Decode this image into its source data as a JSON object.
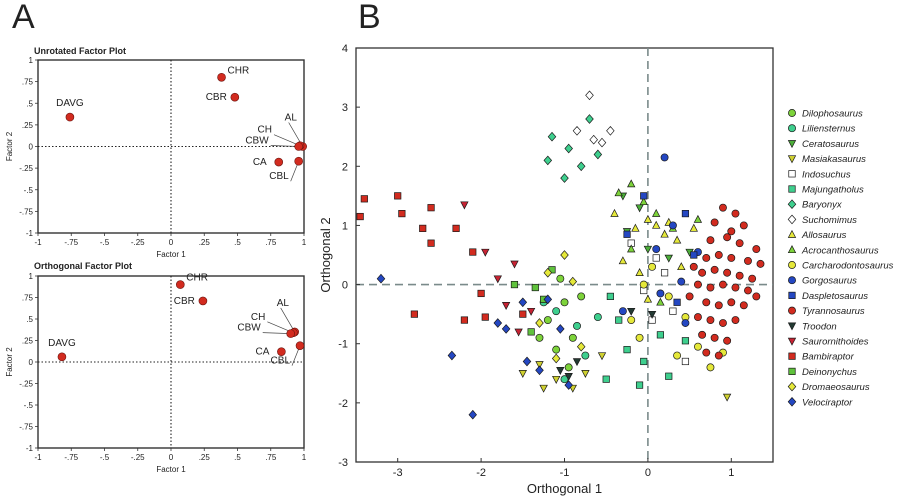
{
  "panel_labels": {
    "a": "A",
    "b": "B"
  },
  "colors": {
    "point": "#d22b1f",
    "frame": "#333333",
    "guide": "#222222",
    "dash_b": "#7a8a8a"
  },
  "chart_data": [
    {
      "type": "scatter",
      "title": "Unrotated Factor Plot",
      "xlabel": "Factor 1",
      "ylabel": "Factor 2",
      "xlim": [
        -1,
        1
      ],
      "ylim": [
        -1,
        1
      ],
      "xticks": [
        "-1",
        "-.75",
        "-.5",
        "-.25",
        "0",
        ".25",
        ".5",
        ".75",
        "1"
      ],
      "yticks": [
        "-1",
        "-.75",
        "-.5",
        "-.25",
        "0",
        ".25",
        ".5",
        ".75",
        "1"
      ],
      "points": [
        {
          "label": "DAVG",
          "x": -0.76,
          "y": 0.34
        },
        {
          "label": "CHR",
          "x": 0.38,
          "y": 0.8
        },
        {
          "label": "CBR",
          "x": 0.48,
          "y": 0.57
        },
        {
          "label": "AL",
          "x": 0.99,
          "y": 0.0
        },
        {
          "label": "CH",
          "x": 0.97,
          "y": 0.01
        },
        {
          "label": "CBW",
          "x": 0.96,
          "y": 0.0
        },
        {
          "label": "CA",
          "x": 0.81,
          "y": -0.18
        },
        {
          "label": "CBL",
          "x": 0.96,
          "y": -0.17
        }
      ]
    },
    {
      "type": "scatter",
      "title": "Orthogonal Factor Plot",
      "xlabel": "Factor 1",
      "ylabel": "Factor 2",
      "xlim": [
        -1,
        1
      ],
      "ylim": [
        -1,
        1
      ],
      "xticks": [
        "-1",
        "-.75",
        "-.5",
        "-.25",
        "0",
        ".25",
        ".5",
        ".75",
        "1"
      ],
      "yticks": [
        "-1",
        "-.75",
        "-.5",
        "-.25",
        "0",
        ".25",
        ".5",
        ".75",
        "1"
      ],
      "points": [
        {
          "label": "DAVG",
          "x": -0.82,
          "y": 0.06
        },
        {
          "label": "CHR",
          "x": 0.07,
          "y": 0.9
        },
        {
          "label": "CBR",
          "x": 0.24,
          "y": 0.71
        },
        {
          "label": "AL",
          "x": 0.93,
          "y": 0.35
        },
        {
          "label": "CH",
          "x": 0.92,
          "y": 0.34
        },
        {
          "label": "CBW",
          "x": 0.9,
          "y": 0.33
        },
        {
          "label": "CA",
          "x": 0.83,
          "y": 0.12
        },
        {
          "label": "CBL",
          "x": 0.97,
          "y": 0.19
        }
      ]
    },
    {
      "type": "scatter",
      "xlabel": "Orthogonal 1",
      "ylabel": "Orthogonal 2",
      "xlim": [
        -3.5,
        1.5
      ],
      "ylim": [
        -3,
        4
      ],
      "xticks": [
        -3,
        -2,
        -1,
        0,
        1
      ],
      "yticks": [
        -3,
        -2,
        -1,
        0,
        1,
        2,
        3,
        4
      ],
      "legend_position": "right",
      "series": [
        {
          "name": "Dilophosaurus",
          "color": "#7dd33a",
          "marker": "circle",
          "points": [
            [
              -1.2,
              -0.6
            ],
            [
              -1.0,
              -0.3
            ],
            [
              -0.9,
              -0.9
            ],
            [
              -1.1,
              -1.1
            ],
            [
              -0.8,
              -0.2
            ],
            [
              -1.3,
              -0.9
            ],
            [
              -0.95,
              -1.4
            ],
            [
              -1.05,
              0.1
            ]
          ]
        },
        {
          "name": "Liliensternus",
          "color": "#3ecf8e",
          "marker": "circle",
          "points": [
            [
              -1.1,
              -0.45
            ],
            [
              -0.85,
              -0.7
            ],
            [
              -1.25,
              -0.3
            ],
            [
              -0.75,
              -1.2
            ],
            [
              -0.6,
              -0.55
            ],
            [
              -1.0,
              -1.6
            ]
          ]
        },
        {
          "name": "Ceratosaurus",
          "color": "#4cae3a",
          "marker": "triangle-down",
          "points": [
            [
              -0.3,
              1.5
            ],
            [
              -0.1,
              1.3
            ],
            [
              -0.25,
              0.9
            ],
            [
              0.0,
              0.6
            ],
            [
              0.25,
              0.45
            ],
            [
              0.5,
              0.55
            ]
          ]
        },
        {
          "name": "Masiakasaurus",
          "color": "#cfd030",
          "marker": "triangle-down",
          "points": [
            [
              -1.3,
              -1.35
            ],
            [
              -1.1,
              -1.6
            ],
            [
              -0.9,
              -1.75
            ],
            [
              -0.75,
              -1.5
            ],
            [
              -1.25,
              -1.75
            ],
            [
              -0.55,
              -1.2
            ],
            [
              -1.5,
              -1.5
            ],
            [
              0.95,
              -1.9
            ]
          ]
        },
        {
          "name": "Indosuchus",
          "color": "#ffffff",
          "marker": "square",
          "points": [
            [
              -0.05,
              -0.1
            ],
            [
              0.2,
              0.2
            ],
            [
              0.1,
              0.45
            ],
            [
              0.3,
              -0.45
            ],
            [
              0.45,
              -1.3
            ],
            [
              0.05,
              -0.6
            ],
            [
              -0.2,
              0.7
            ]
          ]
        },
        {
          "name": "Majungatholus",
          "color": "#3ecf8e",
          "marker": "square",
          "points": [
            [
              -0.35,
              -0.6
            ],
            [
              -0.25,
              -1.1
            ],
            [
              -0.05,
              -1.3
            ],
            [
              0.25,
              -1.55
            ],
            [
              0.15,
              -0.85
            ],
            [
              -0.5,
              -1.6
            ],
            [
              0.45,
              -0.95
            ],
            [
              -0.45,
              -0.2
            ],
            [
              -0.1,
              -1.7
            ]
          ]
        },
        {
          "name": "Baryonyx",
          "color": "#3ecf8e",
          "marker": "diamond",
          "points": [
            [
              -1.15,
              2.5
            ],
            [
              -0.95,
              2.3
            ],
            [
              -0.7,
              2.8
            ],
            [
              -1.0,
              1.8
            ],
            [
              -0.8,
              2.0
            ],
            [
              -0.6,
              2.2
            ],
            [
              -1.2,
              2.1
            ]
          ]
        },
        {
          "name": "Suchomimus",
          "color": "#ffffff",
          "marker": "diamond",
          "points": [
            [
              -0.7,
              3.2
            ],
            [
              -0.55,
              2.4
            ],
            [
              -0.45,
              2.6
            ],
            [
              -0.65,
              2.45
            ],
            [
              -0.85,
              2.6
            ]
          ]
        },
        {
          "name": "Allosaurus",
          "color": "#e5e83a",
          "marker": "triangle-up",
          "points": [
            [
              -0.4,
              1.2
            ],
            [
              -0.15,
              0.95
            ],
            [
              0.0,
              1.1
            ],
            [
              0.2,
              0.85
            ],
            [
              0.35,
              0.75
            ],
            [
              -0.3,
              0.4
            ],
            [
              0.1,
              1.0
            ],
            [
              0.4,
              0.3
            ],
            [
              -0.1,
              0.2
            ],
            [
              0.25,
              1.05
            ],
            [
              0.55,
              0.95
            ],
            [
              0.0,
              -0.25
            ]
          ]
        },
        {
          "name": "Acrocanthosaurus",
          "color": "#7dd33a",
          "marker": "triangle-up",
          "points": [
            [
              -0.2,
              1.7
            ],
            [
              -0.05,
              1.4
            ],
            [
              0.1,
              1.2
            ],
            [
              -0.35,
              1.55
            ],
            [
              0.3,
              0.95
            ],
            [
              0.6,
              1.1
            ],
            [
              -0.2,
              0.6
            ],
            [
              0.15,
              -0.3
            ]
          ]
        },
        {
          "name": "Carcharodontosaurus",
          "color": "#e5e83a",
          "marker": "circle",
          "points": [
            [
              -0.05,
              0.0
            ],
            [
              0.25,
              -0.2
            ],
            [
              0.45,
              -0.55
            ],
            [
              0.6,
              -1.05
            ],
            [
              0.35,
              -1.2
            ],
            [
              0.75,
              -1.4
            ],
            [
              0.9,
              -1.15
            ],
            [
              -0.1,
              -0.9
            ],
            [
              0.05,
              0.3
            ],
            [
              -0.2,
              -0.6
            ]
          ]
        },
        {
          "name": "Gorgosaurus",
          "color": "#2447c2",
          "marker": "circle",
          "points": [
            [
              0.2,
              2.15
            ],
            [
              0.3,
              1.0
            ],
            [
              0.1,
              0.6
            ],
            [
              0.4,
              0.05
            ],
            [
              0.15,
              -0.15
            ],
            [
              -0.3,
              -0.45
            ],
            [
              0.45,
              -0.65
            ],
            [
              0.6,
              0.55
            ]
          ]
        },
        {
          "name": "Daspletosaurus",
          "color": "#2447c2",
          "marker": "square",
          "points": [
            [
              -0.05,
              1.5
            ],
            [
              -0.25,
              0.85
            ],
            [
              0.45,
              1.2
            ],
            [
              0.55,
              0.5
            ],
            [
              0.35,
              -0.3
            ]
          ]
        },
        {
          "name": "Tyrannosaurus",
          "color": "#d22b1f",
          "marker": "circle",
          "points": [
            [
              0.8,
              1.05
            ],
            [
              0.9,
              1.3
            ],
            [
              1.05,
              1.2
            ],
            [
              1.15,
              1.0
            ],
            [
              0.75,
              0.75
            ],
            [
              0.95,
              0.8
            ],
            [
              1.1,
              0.7
            ],
            [
              1.3,
              0.6
            ],
            [
              0.7,
              0.45
            ],
            [
              0.85,
              0.5
            ],
            [
              1.0,
              0.45
            ],
            [
              1.2,
              0.4
            ],
            [
              1.35,
              0.35
            ],
            [
              0.65,
              0.2
            ],
            [
              0.8,
              0.25
            ],
            [
              0.95,
              0.2
            ],
            [
              1.1,
              0.15
            ],
            [
              1.25,
              0.1
            ],
            [
              0.6,
              0.0
            ],
            [
              0.75,
              -0.05
            ],
            [
              0.9,
              0.0
            ],
            [
              1.05,
              -0.05
            ],
            [
              1.2,
              -0.1
            ],
            [
              0.7,
              -0.3
            ],
            [
              0.85,
              -0.35
            ],
            [
              1.0,
              -0.3
            ],
            [
              1.15,
              -0.35
            ],
            [
              0.6,
              -0.55
            ],
            [
              0.75,
              -0.6
            ],
            [
              0.9,
              -0.65
            ],
            [
              1.05,
              -0.6
            ],
            [
              0.65,
              -0.85
            ],
            [
              0.8,
              -0.9
            ],
            [
              0.95,
              -0.95
            ],
            [
              0.7,
              -1.15
            ],
            [
              0.85,
              -1.2
            ],
            [
              0.5,
              -0.2
            ],
            [
              0.55,
              0.3
            ],
            [
              1.3,
              -0.2
            ],
            [
              1.0,
              0.9
            ]
          ]
        },
        {
          "name": "Troodon",
          "color": "#233a33",
          "marker": "triangle-down",
          "points": [
            [
              -1.05,
              -1.45
            ],
            [
              -0.95,
              -1.55
            ],
            [
              -0.85,
              -1.3
            ],
            [
              -0.2,
              -0.45
            ],
            [
              0.05,
              -0.5
            ]
          ]
        },
        {
          "name": "Saurornithoides",
          "color": "#c72333",
          "marker": "triangle-down",
          "points": [
            [
              -2.2,
              1.35
            ],
            [
              -1.95,
              0.55
            ],
            [
              -1.6,
              0.35
            ],
            [
              -1.8,
              0.1
            ],
            [
              -1.4,
              -0.45
            ],
            [
              -1.55,
              -0.8
            ],
            [
              -1.7,
              -0.35
            ]
          ]
        },
        {
          "name": "Bambiraptor",
          "color": "#d22b1f",
          "marker": "square",
          "points": [
            [
              -3.4,
              1.45
            ],
            [
              -3.0,
              1.5
            ],
            [
              -3.45,
              1.15
            ],
            [
              -2.95,
              1.2
            ],
            [
              -2.7,
              0.95
            ],
            [
              -2.6,
              0.7
            ],
            [
              -2.6,
              1.3
            ],
            [
              -2.3,
              0.95
            ],
            [
              -2.1,
              0.55
            ],
            [
              -2.0,
              -0.15
            ],
            [
              -1.95,
              -0.55
            ],
            [
              -2.8,
              -0.5
            ],
            [
              -2.2,
              -0.6
            ],
            [
              -1.5,
              -0.5
            ]
          ]
        },
        {
          "name": "Deinonychus",
          "color": "#5fc23c",
          "marker": "square",
          "points": [
            [
              -1.35,
              -0.05
            ],
            [
              -1.25,
              -0.25
            ],
            [
              -1.6,
              0.0
            ],
            [
              -1.15,
              0.25
            ],
            [
              -1.4,
              -0.8
            ]
          ]
        },
        {
          "name": "Dromaeosaurus",
          "color": "#e5e83a",
          "marker": "diamond",
          "points": [
            [
              -1.2,
              0.2
            ],
            [
              -1.0,
              0.5
            ],
            [
              -0.9,
              0.05
            ],
            [
              -1.3,
              -0.65
            ],
            [
              -0.8,
              -1.05
            ],
            [
              -1.1,
              -1.25
            ]
          ]
        },
        {
          "name": "Velociraptor",
          "color": "#2447c2",
          "marker": "diamond",
          "points": [
            [
              -3.2,
              0.1
            ],
            [
              -2.1,
              -2.2
            ],
            [
              -2.35,
              -1.2
            ],
            [
              -1.7,
              -0.75
            ],
            [
              -1.5,
              -0.3
            ],
            [
              -1.45,
              -1.3
            ],
            [
              -1.2,
              -0.25
            ],
            [
              -1.05,
              -0.75
            ],
            [
              -0.95,
              -1.7
            ],
            [
              -1.8,
              -0.65
            ],
            [
              -1.3,
              -1.45
            ]
          ]
        }
      ]
    }
  ]
}
